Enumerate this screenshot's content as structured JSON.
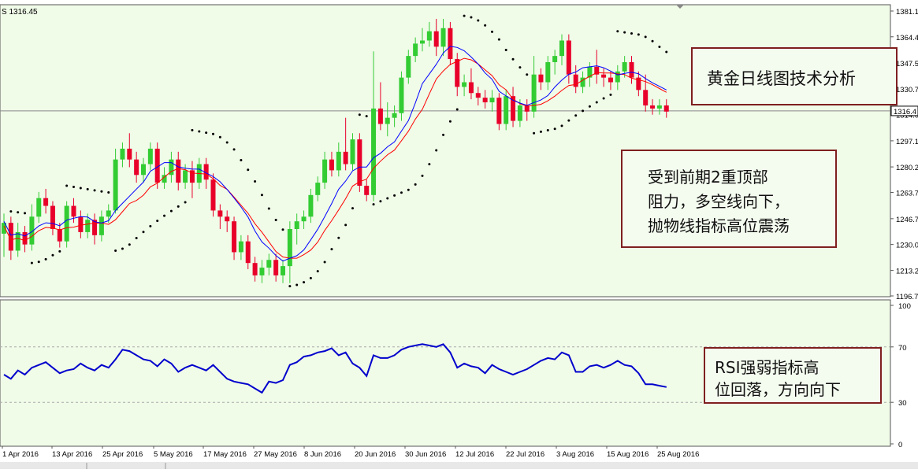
{
  "chart_data": {
    "type": "candlestick",
    "main_chart": {
      "symbol_price_label": "1316.45",
      "current_price_tag": "1316.4",
      "y_axis_ticks": [
        "1381.1",
        "1364.4",
        "1347.5",
        "1330.7",
        "1314.0",
        "1297.1",
        "1280.2",
        "1263.7",
        "1246.7",
        "1230.0",
        "1213.2",
        "1196.7"
      ],
      "ylim": [
        1196.7,
        1381.1
      ],
      "current_price": 1316.45,
      "overlays": [
        "moving average (blue)",
        "moving average (red)",
        "parabolic SAR (black dots)"
      ]
    },
    "rsi_panel": {
      "y_axis_ticks": [
        "100",
        "70",
        "30",
        "0"
      ],
      "levels": [
        70,
        30
      ],
      "ylim": [
        0,
        100
      ],
      "values": [
        50,
        47,
        53,
        50,
        55,
        57,
        59,
        55,
        51,
        53,
        54,
        58,
        55,
        53,
        57,
        55,
        61,
        68,
        67,
        64,
        61,
        60,
        56,
        61,
        58,
        52,
        55,
        57,
        55,
        53,
        57,
        52,
        47,
        45,
        44,
        43,
        40,
        37,
        45,
        44,
        46,
        57,
        59,
        63,
        64,
        66,
        67,
        69,
        64,
        66,
        58,
        55,
        49,
        64,
        62,
        62,
        64,
        68,
        70,
        71,
        72,
        71,
        70,
        72,
        66,
        55,
        58,
        56,
        55,
        51,
        57,
        54,
        52,
        50,
        52,
        54,
        57,
        60,
        62,
        61,
        66,
        64,
        52,
        52,
        56,
        57,
        55,
        57,
        60,
        57,
        56,
        51,
        43,
        43,
        42,
        41
      ]
    },
    "x_axis_labels": [
      "1 Apr 2016",
      "13 Apr 2016",
      "25 Apr 2016",
      "5 May 2016",
      "17 May 2016",
      "27 May 2016",
      "8 Jun 2016",
      "20 Jun 2016",
      "30 Jun 2016",
      "12 Jul 2016",
      "22 Jul 2016",
      "3 Aug 2016",
      "15 Aug 2016",
      "25 Aug 2016"
    ],
    "candles": [
      [
        1237,
        1244,
        1222,
        1250
      ],
      [
        1244,
        1226,
        1220,
        1248
      ],
      [
        1226,
        1238,
        1222,
        1244
      ],
      [
        1238,
        1230,
        1225,
        1242
      ],
      [
        1230,
        1248,
        1226,
        1256
      ],
      [
        1248,
        1260,
        1244,
        1264
      ],
      [
        1260,
        1255,
        1250,
        1266
      ],
      [
        1255,
        1240,
        1236,
        1258
      ],
      [
        1240,
        1232,
        1228,
        1244
      ],
      [
        1232,
        1255,
        1228,
        1258
      ],
      [
        1255,
        1248,
        1244,
        1260
      ],
      [
        1248,
        1238,
        1234,
        1252
      ],
      [
        1238,
        1246,
        1234,
        1250
      ],
      [
        1246,
        1236,
        1230,
        1250
      ],
      [
        1236,
        1248,
        1232,
        1252
      ],
      [
        1248,
        1252,
        1244,
        1256
      ],
      [
        1252,
        1285,
        1250,
        1292
      ],
      [
        1285,
        1292,
        1280,
        1296
      ],
      [
        1292,
        1285,
        1280,
        1302
      ],
      [
        1285,
        1275,
        1270,
        1290
      ],
      [
        1275,
        1282,
        1270,
        1286
      ],
      [
        1282,
        1292,
        1278,
        1296
      ],
      [
        1292,
        1270,
        1266,
        1296
      ],
      [
        1270,
        1275,
        1266,
        1280
      ],
      [
        1275,
        1285,
        1270,
        1290
      ],
      [
        1285,
        1270,
        1265,
        1290
      ],
      [
        1270,
        1278,
        1266,
        1282
      ],
      [
        1278,
        1270,
        1260,
        1284
      ],
      [
        1270,
        1282,
        1266,
        1286
      ],
      [
        1282,
        1272,
        1266,
        1286
      ],
      [
        1272,
        1252,
        1248,
        1276
      ],
      [
        1252,
        1248,
        1240,
        1256
      ],
      [
        1248,
        1245,
        1238,
        1252
      ],
      [
        1245,
        1225,
        1220,
        1248
      ],
      [
        1225,
        1232,
        1220,
        1236
      ],
      [
        1232,
        1218,
        1214,
        1236
      ],
      [
        1218,
        1210,
        1206,
        1222
      ],
      [
        1210,
        1215,
        1205,
        1220
      ],
      [
        1215,
        1220,
        1210,
        1224
      ],
      [
        1220,
        1210,
        1206,
        1224
      ],
      [
        1210,
        1216,
        1205,
        1220
      ],
      [
        1216,
        1240,
        1205,
        1245
      ],
      [
        1240,
        1245,
        1230,
        1250
      ],
      [
        1245,
        1248,
        1240,
        1252
      ],
      [
        1248,
        1262,
        1244,
        1266
      ],
      [
        1262,
        1270,
        1258,
        1274
      ],
      [
        1270,
        1285,
        1266,
        1290
      ],
      [
        1285,
        1278,
        1274,
        1290
      ],
      [
        1278,
        1290,
        1274,
        1296
      ],
      [
        1290,
        1282,
        1278,
        1312
      ],
      [
        1282,
        1298,
        1278,
        1302
      ],
      [
        1298,
        1268,
        1264,
        1302
      ],
      [
        1268,
        1262,
        1258,
        1272
      ],
      [
        1262,
        1318,
        1258,
        1355
      ],
      [
        1318,
        1308,
        1304,
        1335
      ],
      [
        1308,
        1312,
        1300,
        1322
      ],
      [
        1312,
        1315,
        1306,
        1320
      ],
      [
        1315,
        1338,
        1310,
        1342
      ],
      [
        1338,
        1352,
        1334,
        1356
      ],
      [
        1352,
        1360,
        1348,
        1364
      ],
      [
        1360,
        1362,
        1355,
        1370
      ],
      [
        1362,
        1368,
        1358,
        1374
      ],
      [
        1368,
        1358,
        1352,
        1376
      ],
      [
        1358,
        1370,
        1352,
        1376
      ],
      [
        1370,
        1350,
        1346,
        1374
      ],
      [
        1350,
        1332,
        1326,
        1354
      ],
      [
        1332,
        1335,
        1326,
        1340
      ],
      [
        1335,
        1328,
        1324,
        1344
      ],
      [
        1328,
        1325,
        1320,
        1332
      ],
      [
        1325,
        1322,
        1318,
        1330
      ],
      [
        1322,
        1325,
        1316,
        1330
      ],
      [
        1325,
        1308,
        1304,
        1328
      ],
      [
        1308,
        1326,
        1304,
        1330
      ],
      [
        1326,
        1310,
        1306,
        1332
      ],
      [
        1310,
        1320,
        1306,
        1324
      ],
      [
        1320,
        1316,
        1310,
        1324
      ],
      [
        1316,
        1340,
        1312,
        1352
      ],
      [
        1340,
        1335,
        1330,
        1344
      ],
      [
        1335,
        1348,
        1330,
        1352
      ],
      [
        1348,
        1352,
        1340,
        1356
      ],
      [
        1352,
        1362,
        1346,
        1366
      ],
      [
        1362,
        1340,
        1334,
        1366
      ],
      [
        1340,
        1332,
        1328,
        1346
      ],
      [
        1332,
        1338,
        1328,
        1342
      ],
      [
        1338,
        1345,
        1332,
        1348
      ],
      [
        1345,
        1340,
        1334,
        1356
      ],
      [
        1340,
        1338,
        1332,
        1344
      ],
      [
        1338,
        1335,
        1330,
        1342
      ],
      [
        1335,
        1342,
        1330,
        1346
      ],
      [
        1342,
        1348,
        1338,
        1352
      ],
      [
        1348,
        1338,
        1334,
        1352
      ],
      [
        1338,
        1330,
        1326,
        1342
      ],
      [
        1330,
        1320,
        1316,
        1340
      ],
      [
        1320,
        1318,
        1314,
        1324
      ],
      [
        1318,
        1320,
        1314,
        1324
      ],
      [
        1320,
        1316,
        1312,
        1324
      ]
    ]
  },
  "annotations": {
    "box1": "黄金日线图技术分析",
    "box2_lines": [
      "受到前期2重顶部",
      "阻力，多空线向下，",
      "抛物线指标高位震荡"
    ],
    "box3_lines": [
      "RSI强弱指标高",
      "位回落，方向向下"
    ]
  },
  "colors": {
    "bull": "#33cc33",
    "bear": "#e8002a",
    "ma_blue": "#0000ff",
    "ma_red": "#ff0000",
    "sar": "#000000",
    "rsi": "#0000cc",
    "panel_bg": "#f0fbe8",
    "annotation_border": "#7f1f1f"
  }
}
